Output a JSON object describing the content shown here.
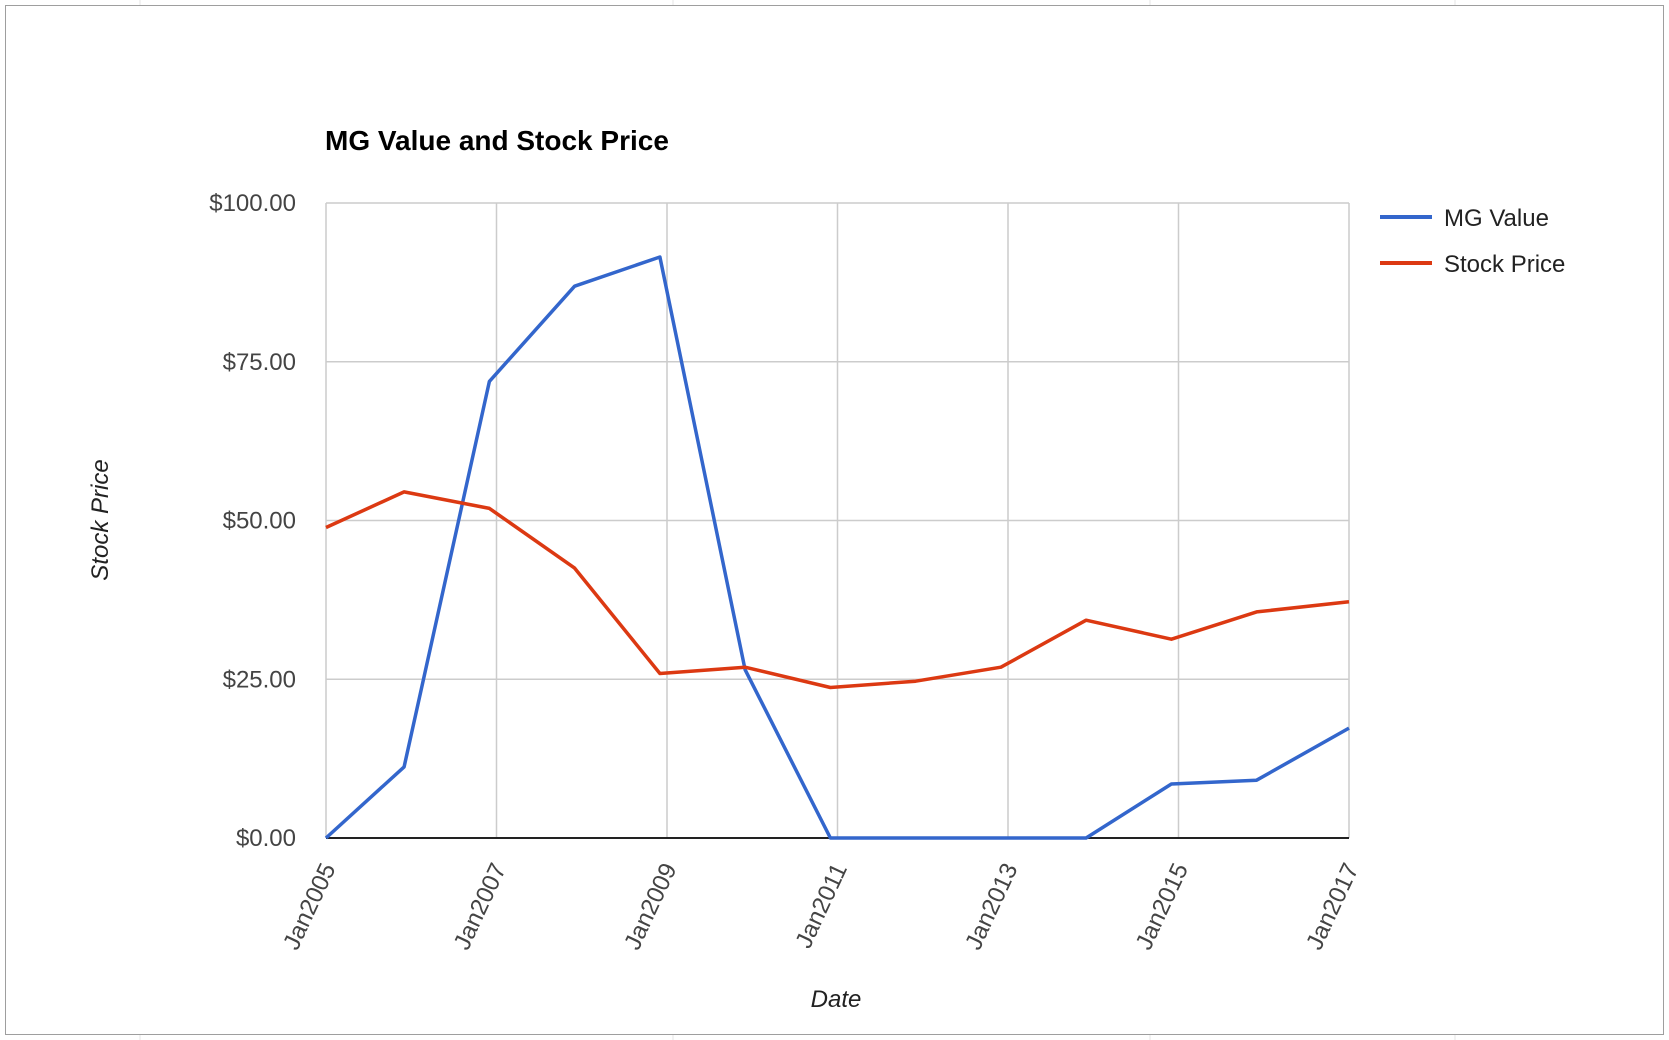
{
  "chart_data": {
    "type": "line",
    "title": "MG Value and Stock Price",
    "xlabel": "Date",
    "ylabel": "Stock Price",
    "ylim": [
      0,
      100
    ],
    "xlim": [
      "2005-01",
      "2017-01"
    ],
    "y_ticks": [
      "$0.00",
      "$25.00",
      "$50.00",
      "$75.00",
      "$100.00"
    ],
    "y_tick_values": [
      0,
      25,
      50,
      75,
      100
    ],
    "x_ticks": [
      "Jan2005",
      "Jan2007",
      "Jan2009",
      "Jan2011",
      "Jan2013",
      "Jan2015",
      "Jan2017"
    ],
    "x_tick_values": [
      "2005-01",
      "2007-01",
      "2009-01",
      "2011-01",
      "2013-01",
      "2015-01",
      "2017-01"
    ],
    "grid": true,
    "legend_position": "right",
    "x": [
      "2005-01",
      "2005-12",
      "2006-12",
      "2007-12",
      "2008-12",
      "2009-12",
      "2010-12",
      "2011-12",
      "2012-12",
      "2013-12",
      "2014-12",
      "2015-12",
      "2017-01"
    ],
    "series": [
      {
        "name": "MG Value",
        "color": "#3366cc",
        "values": [
          0,
          11.2,
          71.9,
          86.9,
          91.5,
          26.5,
          0,
          0,
          0,
          0,
          8.5,
          9.1,
          17.3
        ]
      },
      {
        "name": "Stock Price",
        "color": "#dc3912",
        "values": [
          48.9,
          54.5,
          51.9,
          42.5,
          25.9,
          26.9,
          23.7,
          24.7,
          26.9,
          34.3,
          31.3,
          35.6,
          37.2
        ]
      }
    ]
  }
}
